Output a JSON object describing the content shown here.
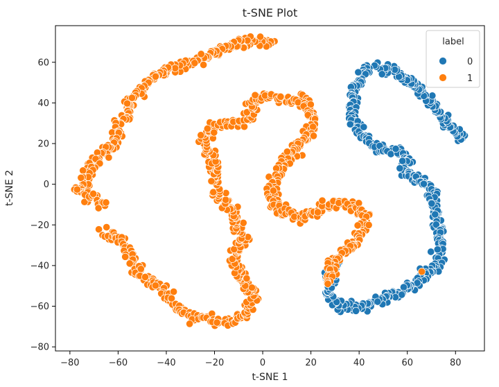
{
  "chart_data": {
    "type": "scatter",
    "title": "t-SNE Plot",
    "xlabel": "t-SNE 1",
    "ylabel": "t-SNE 2",
    "xlim": [
      -86,
      92
    ],
    "ylim": [
      -82,
      78
    ],
    "xticks": [
      -80,
      -60,
      -40,
      -20,
      0,
      20,
      40,
      60,
      80
    ],
    "yticks": [
      -80,
      -60,
      -40,
      -20,
      0,
      20,
      40,
      60
    ],
    "grid": false,
    "legend": {
      "title": "label",
      "position": "top-right"
    },
    "series": [
      {
        "name": "0",
        "color": "#1f77b4",
        "polyline": [
          [
            83,
            22
          ],
          [
            80,
            25
          ],
          [
            76,
            31
          ],
          [
            70,
            40
          ],
          [
            63,
            48
          ],
          [
            57,
            54
          ],
          [
            50,
            58
          ],
          [
            44,
            57
          ],
          [
            40,
            50
          ],
          [
            37,
            42
          ],
          [
            37,
            33
          ],
          [
            40,
            25
          ],
          [
            46,
            20
          ],
          [
            52,
            17
          ],
          [
            58,
            15
          ],
          [
            60,
            12
          ],
          [
            58,
            8
          ],
          [
            61,
            4
          ],
          [
            66,
            2
          ],
          [
            70,
            -3
          ],
          [
            71,
            -10
          ],
          [
            73,
            -18
          ],
          [
            73,
            -25
          ],
          [
            73,
            -33
          ],
          [
            72,
            -40
          ],
          [
            68,
            -44
          ],
          [
            63,
            -49
          ],
          [
            56,
            -54
          ],
          [
            50,
            -57
          ],
          [
            45,
            -59
          ],
          [
            37,
            -61
          ],
          [
            31,
            -59
          ],
          [
            27,
            -55
          ],
          [
            27,
            -51
          ],
          [
            28,
            -48
          ],
          [
            29,
            -43
          ],
          [
            31,
            -40
          ]
        ]
      },
      {
        "name": "1",
        "color": "#ff7f0e",
        "polyline": [
          [
            4,
            71
          ],
          [
            -2,
            70
          ],
          [
            -10,
            69
          ],
          [
            -18,
            66
          ],
          [
            -24,
            62
          ],
          [
            -32,
            59
          ],
          [
            -40,
            56
          ],
          [
            -46,
            52
          ],
          [
            -50,
            46
          ],
          [
            -54,
            42
          ],
          [
            -56,
            36
          ],
          [
            -60,
            30
          ],
          [
            -61,
            24
          ],
          [
            -61,
            19
          ],
          [
            -66,
            16
          ],
          [
            -70,
            10
          ],
          [
            -72,
            5
          ],
          [
            -75,
            0
          ],
          [
            -77,
            -3
          ],
          [
            -72,
            -6
          ],
          [
            -65,
            -9
          ],
          "break",
          [
            -66,
            -24
          ],
          [
            -60,
            -26
          ],
          [
            -56,
            -32
          ],
          [
            -53,
            -40
          ],
          [
            -48,
            -46
          ],
          [
            -42,
            -52
          ],
          [
            -38,
            -58
          ],
          [
            -33,
            -63
          ],
          [
            -24,
            -66
          ],
          [
            -17,
            -68
          ],
          [
            -12,
            -67
          ],
          [
            -6,
            -62
          ],
          [
            -4,
            -55
          ],
          [
            -7,
            -50
          ],
          [
            -10,
            -44
          ],
          [
            -12,
            -37
          ],
          [
            -10,
            -32
          ],
          [
            -8,
            -27
          ],
          [
            -11,
            -22
          ],
          [
            -12,
            -14
          ],
          [
            -17,
            -8
          ],
          [
            -19,
            0
          ],
          [
            -20,
            8
          ],
          [
            -22,
            14
          ],
          [
            -24,
            20
          ],
          [
            -23,
            26
          ],
          [
            -18,
            30
          ],
          [
            -12,
            30
          ],
          [
            -6,
            32
          ],
          [
            -4,
            40
          ],
          [
            -2,
            43
          ],
          [
            4,
            43
          ],
          [
            10,
            42
          ],
          [
            16,
            41
          ],
          [
            20,
            36
          ],
          [
            21,
            28
          ],
          [
            18,
            24
          ],
          [
            14,
            18
          ],
          [
            10,
            12
          ],
          [
            7,
            6
          ],
          [
            4,
            -2
          ],
          [
            5,
            -8
          ],
          [
            8,
            -13
          ],
          [
            12,
            -14
          ],
          [
            16,
            -16
          ],
          [
            19,
            -15
          ],
          [
            22,
            -14
          ],
          [
            28,
            -10
          ],
          [
            34,
            -10
          ],
          [
            40,
            -12
          ],
          [
            43,
            -14
          ],
          [
            42,
            -20
          ],
          [
            40,
            -27
          ],
          [
            35,
            -32
          ],
          [
            31,
            -35
          ],
          [
            29,
            -40
          ],
          [
            27,
            -46
          ],
          [
            27,
            -49
          ]
        ],
        "extra_points": [
          [
            66,
            -43
          ]
        ]
      }
    ]
  }
}
